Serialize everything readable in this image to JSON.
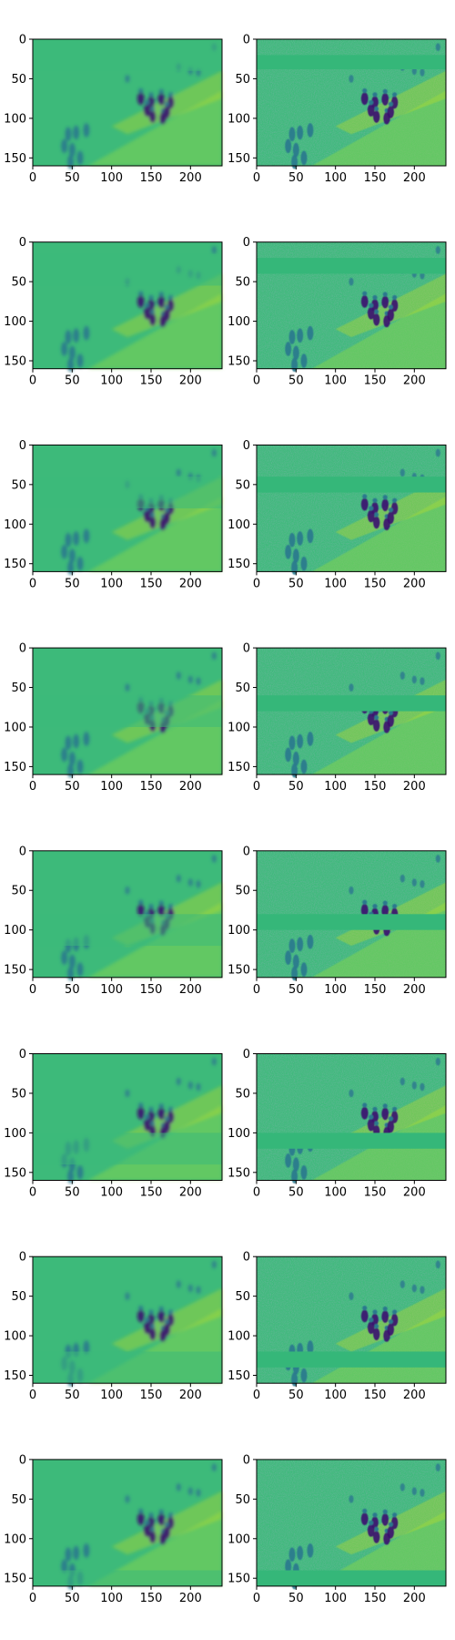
{
  "chart_data": {
    "type": "heatmap",
    "layout": "8x2 grid of image panels",
    "image_width": 240,
    "image_height": 160,
    "colormap": "viridis",
    "xlim": [
      0,
      240
    ],
    "ylim": [
      160,
      0
    ],
    "xticks": [
      0,
      50,
      100,
      150,
      200
    ],
    "yticks": [
      0,
      50,
      100,
      150
    ],
    "grid": false,
    "rows": [
      {
        "left": {
          "blur_band": [
            0,
            40
          ]
        },
        "right": {
          "flat_band": [
            20,
            38
          ]
        }
      },
      {
        "left": {
          "blur_band": [
            15,
            55
          ]
        },
        "right": {
          "flat_band": [
            20,
            40
          ]
        }
      },
      {
        "left": {
          "blur_band": [
            40,
            80
          ]
        },
        "right": {
          "flat_band": [
            40,
            60
          ]
        }
      },
      {
        "left": {
          "blur_band": [
            60,
            100
          ]
        },
        "right": {
          "flat_band": [
            60,
            80
          ]
        }
      },
      {
        "left": {
          "blur_band": [
            80,
            120
          ]
        },
        "right": {
          "flat_band": [
            80,
            100
          ]
        }
      },
      {
        "left": {
          "blur_band": [
            100,
            140
          ]
        },
        "right": {
          "flat_band": [
            100,
            120
          ]
        }
      },
      {
        "left": {
          "blur_band": [
            120,
            160
          ]
        },
        "right": {
          "flat_band": [
            120,
            140
          ]
        }
      },
      {
        "left": {
          "blur_band": [
            140,
            160
          ]
        },
        "right": {
          "flat_band": [
            140,
            160
          ]
        }
      }
    ],
    "colors": {
      "background": "#3dba7a",
      "light": "#7fd34e",
      "bright": "#c8e020",
      "dark": "#2a788e",
      "darkest": "#3b0f70",
      "flat": "#35b779"
    }
  }
}
